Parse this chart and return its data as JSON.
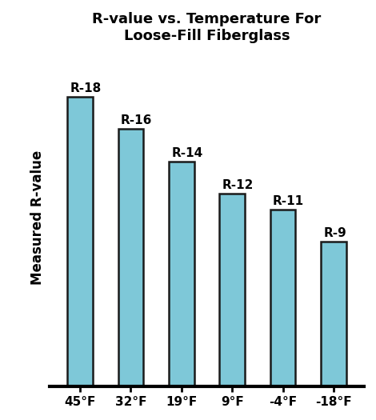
{
  "title": "R-value vs. Temperature For\nLoose-Fill Fiberglass",
  "ylabel": "Measured R-value",
  "categories": [
    "45°F",
    "32°F",
    "19°F",
    "9°F",
    "-4°F",
    "-18°F"
  ],
  "values": [
    18,
    16,
    14,
    12,
    11,
    9
  ],
  "labels": [
    "R-18",
    "R-16",
    "R-14",
    "R-12",
    "R-11",
    "R-9"
  ],
  "bar_color": "#7EC8D8",
  "bar_edge_color": "#1a1a1a",
  "background_color": "#ffffff",
  "title_fontsize": 13,
  "label_fontsize": 11,
  "tick_fontsize": 11,
  "ylabel_fontsize": 12,
  "ylim": [
    0,
    21
  ],
  "bar_width": 0.5
}
